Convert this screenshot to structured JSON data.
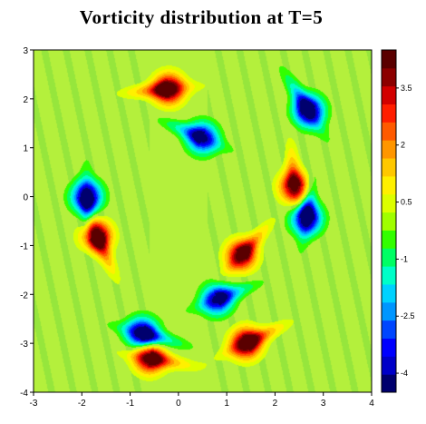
{
  "chart_data": {
    "type": "heatmap",
    "title": "Vorticity distribution at T=5",
    "xlabel": "",
    "ylabel": "",
    "xlim": [
      -3,
      4
    ],
    "ylim": [
      -4,
      3
    ],
    "x_ticks": [
      "-3",
      "-2",
      "-1",
      "0",
      "1",
      "2",
      "3",
      "4"
    ],
    "y_ticks": [
      "3",
      "2",
      "1",
      "0",
      "-1",
      "-2",
      "-3",
      "-4"
    ],
    "colorbar": {
      "range": [
        -4.5,
        4.5
      ],
      "tick_labels": [
        "3.5",
        "2",
        "0.5",
        "-1",
        "-2.5",
        "-4"
      ],
      "tick_values": [
        3.5,
        2,
        0.5,
        -1,
        -2.5,
        -4
      ],
      "colors": [
        "#00006e",
        "#0000c8",
        "#0000ff",
        "#0046ff",
        "#0096ff",
        "#00d2ff",
        "#00ffc8",
        "#00ff64",
        "#32ff00",
        "#a0ff00",
        "#dcff00",
        "#fff000",
        "#ffc800",
        "#ff9600",
        "#ff5a00",
        "#ff1e00",
        "#d20000",
        "#8c0000",
        "#5a0000"
      ],
      "background_color": "#b4f03c"
    },
    "vortices": [
      {
        "x": -0.2,
        "y": 2.2,
        "strength": 4.5
      },
      {
        "x": 2.7,
        "y": 1.75,
        "strength": -4.5
      },
      {
        "x": -1.9,
        "y": 0.0,
        "strength": -4.5
      },
      {
        "x": 2.65,
        "y": -0.45,
        "strength": -4.5
      },
      {
        "x": -1.7,
        "y": -0.8,
        "strength": 4.5
      },
      {
        "x": -0.75,
        "y": -2.8,
        "strength": -4.5
      },
      {
        "x": 1.4,
        "y": -3.0,
        "strength": 4.5
      },
      {
        "x": -0.6,
        "y": -3.3,
        "strength": 4.2
      },
      {
        "x": 0.5,
        "y": 1.2,
        "strength": -3.8
      },
      {
        "x": 0.8,
        "y": -2.1,
        "strength": -3.8
      },
      {
        "x": 1.3,
        "y": -1.2,
        "strength": 4.0
      },
      {
        "x": 2.4,
        "y": 0.2,
        "strength": 3.8
      }
    ]
  }
}
